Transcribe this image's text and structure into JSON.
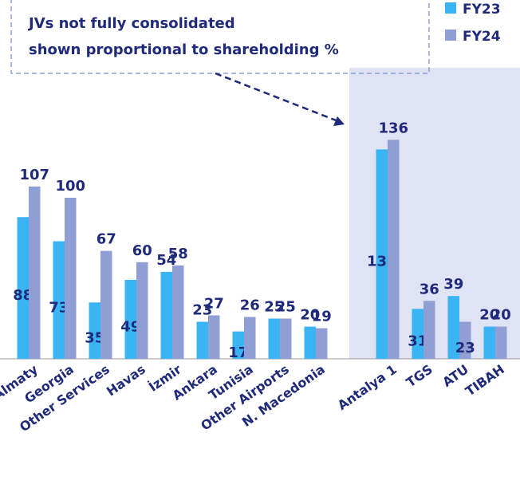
{
  "chart_data": {
    "type": "bar",
    "annotation": [
      "JVs not fully consolidated",
      "shown proportional to shareholding %"
    ],
    "categories": [
      "Almaty",
      "Georgia",
      "Other Services",
      "Havas",
      "İzmir",
      "Ankara",
      "Tunisia",
      "Other Airports",
      "N. Macedonia",
      "Antalya 1",
      "TGS",
      "ATU",
      "TIBAH"
    ],
    "series": [
      {
        "name": "FY23",
        "color": "#3ab4f2",
        "values": [
          88,
          73,
          35,
          49,
          54,
          23,
          17,
          25,
          20,
          130,
          31,
          39,
          20
        ]
      },
      {
        "name": "FY24",
        "color": "#8f9fd6",
        "values": [
          107,
          100,
          67,
          60,
          58,
          27,
          26,
          25,
          19,
          136,
          36,
          23,
          20
        ]
      }
    ]
  }
}
